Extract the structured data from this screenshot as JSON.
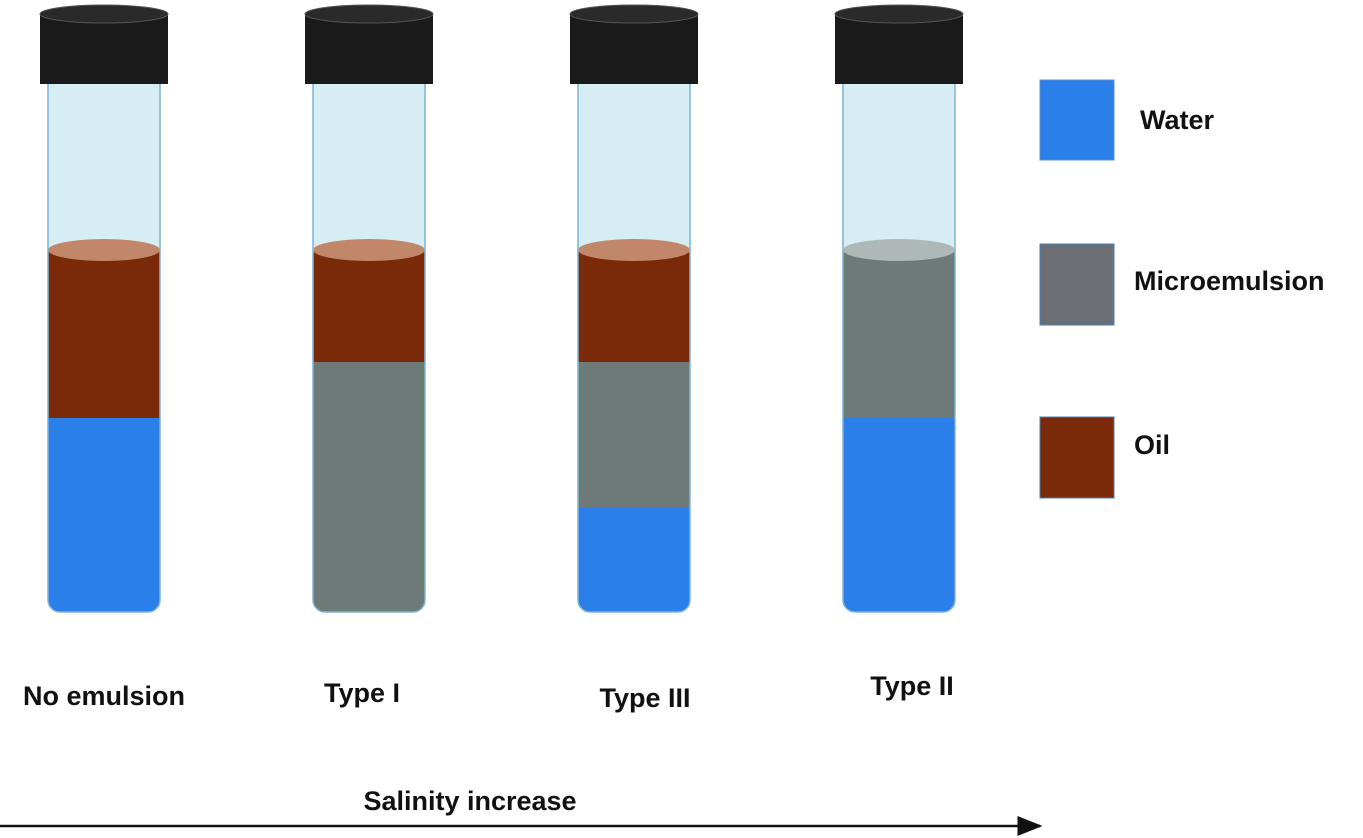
{
  "tubes": [
    {
      "label": "No emulsion"
    },
    {
      "label": "Type I"
    },
    {
      "label": "Type III"
    },
    {
      "label": "Type II"
    }
  ],
  "legend": [
    {
      "label": "Water"
    },
    {
      "label": "Microemulsion"
    },
    {
      "label": "Oil"
    }
  ],
  "arrow_label": "Salinity increase"
}
